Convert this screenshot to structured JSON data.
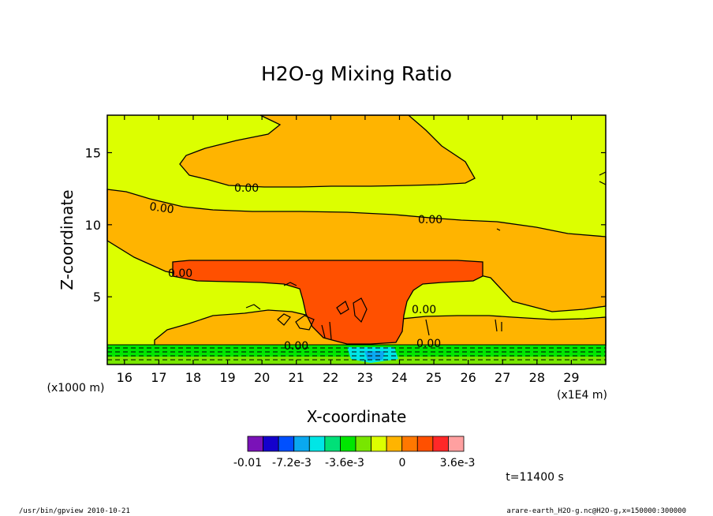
{
  "chart_data": {
    "type": "heatmap",
    "title": "H2O-g Mixing Ratio",
    "xlabel": "X-coordinate",
    "ylabel": "Z-coordinate",
    "x_unit": "(x1000 m)",
    "x_multiplier_label": "(x1E4 m)",
    "xlim": [
      15.5,
      30.0
    ],
    "ylim": [
      0.3,
      17.6
    ],
    "x_ticks": [
      16,
      17,
      18,
      19,
      20,
      21,
      22,
      23,
      24,
      25,
      26,
      27,
      28,
      29
    ],
    "y_ticks": [
      5,
      10,
      15
    ],
    "contour_labels": [
      "0.00",
      "0.00",
      "0.00",
      "0.00",
      "0.00",
      "0.00",
      "0.00"
    ],
    "colorbar": {
      "colors": [
        "#7a12b8",
        "#1400cc",
        "#0050ff",
        "#0aa8f0",
        "#00e6e6",
        "#00e078",
        "#00e600",
        "#78e600",
        "#dcff00",
        "#ffb400",
        "#ff7800",
        "#ff5000",
        "#ff2828",
        "#ffa0a0"
      ],
      "labels": [
        "-0.01",
        "-7.2e-3",
        "-3.6e-3",
        "0",
        "3.6e-3"
      ]
    },
    "time_label": "t=11400 s",
    "grid": false,
    "legend": "none"
  },
  "footer": {
    "left": "/usr/bin/gpview   2010-10-21",
    "right": "arare-earth_H2O-g.nc@H2O-g,x=150000:300000"
  },
  "colors": {
    "background_level": "#dcff00",
    "orange": "#ffb400",
    "red_orange": "#ff5000",
    "green": "#00e600"
  }
}
